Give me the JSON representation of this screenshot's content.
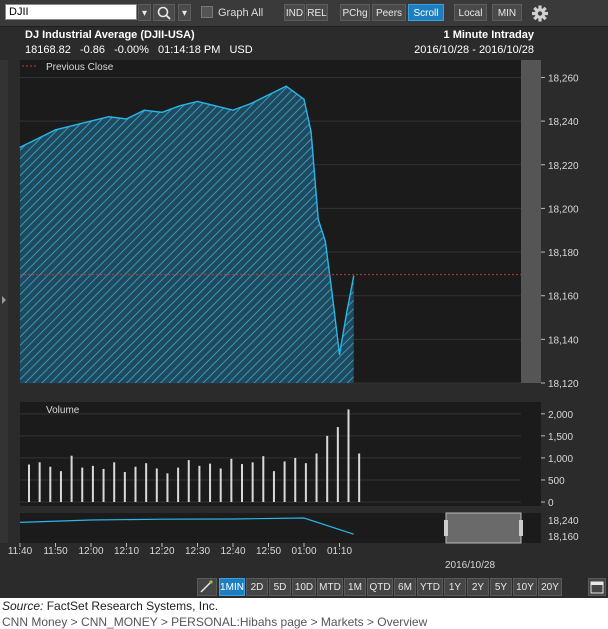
{
  "toolbar": {
    "symbol": "DJII",
    "graph_all": "Graph All",
    "ind": "IND",
    "rel": "REL",
    "pchg": "PChg",
    "peers": "Peers",
    "scroll": "Scroll",
    "local": "Local",
    "min": "MIN",
    "icons": [
      "dropdown-arrow-icon",
      "search-icon",
      "dropdown-arrow-icon",
      "gear-icon"
    ]
  },
  "header": {
    "title": "DJ Industrial Average (DJII-USA)",
    "interval": "1 Minute Intraday",
    "last": "18168.82",
    "change": "-0.86",
    "pct_change": "-0.00%",
    "time": "01:14:18 PM",
    "currency": "USD",
    "date_range": "2016/10/28 - 2016/10/28"
  },
  "legend": {
    "previous_close": "Previous Close"
  },
  "volume_label": "Volume",
  "colors": {
    "line": "#29b6e8",
    "prev_close": "#c0392b",
    "background": "#2b2b2b",
    "active": "#1e7fc0"
  },
  "chart_data": [
    {
      "type": "area",
      "title": "DJ Industrial Average (DJII-USA)",
      "x": [
        "11:40",
        "11:45",
        "11:50",
        "11:55",
        "12:00",
        "12:05",
        "12:10",
        "12:15",
        "12:20",
        "12:25",
        "12:30",
        "12:35",
        "12:40",
        "12:45",
        "12:50",
        "12:55",
        "13:00",
        "13:02",
        "13:04",
        "13:06",
        "13:08",
        "13:10",
        "13:12",
        "13:14"
      ],
      "series": [
        {
          "values": [
            18228,
            18232,
            18236,
            18238,
            18240,
            18242,
            18241,
            18245,
            18244,
            18247,
            18249,
            18247,
            18245,
            18248,
            18252,
            18256,
            18250,
            18235,
            18195,
            18185,
            18160,
            18133,
            18152,
            18169
          ]
        }
      ],
      "previous_close": 18169.68,
      "ylim": [
        18120,
        18268
      ],
      "yticks": [
        18120,
        18140,
        18160,
        18180,
        18200,
        18220,
        18240,
        18260
      ],
      "grid": true
    },
    {
      "type": "bar",
      "title": "Volume",
      "x": [
        "11:40",
        "11:43",
        "11:46",
        "11:49",
        "11:52",
        "11:55",
        "11:58",
        "12:01",
        "12:04",
        "12:07",
        "12:10",
        "12:13",
        "12:16",
        "12:19",
        "12:22",
        "12:25",
        "12:28",
        "12:31",
        "12:34",
        "12:37",
        "12:40",
        "12:43",
        "12:46",
        "12:49",
        "12:52",
        "12:55",
        "12:58",
        "13:01",
        "13:04",
        "13:07",
        "13:10",
        "13:13"
      ],
      "values": [
        850,
        900,
        800,
        700,
        1050,
        780,
        820,
        750,
        900,
        680,
        800,
        880,
        760,
        650,
        780,
        950,
        820,
        870,
        760,
        980,
        860,
        900,
        1040,
        700,
        920,
        1000,
        880,
        1100,
        1500,
        1700,
        2100,
        1100
      ],
      "ylim": [
        0,
        2200
      ],
      "yticks": [
        0,
        500,
        1000,
        1500,
        2000
      ]
    },
    {
      "type": "line",
      "title": "",
      "x": [
        "11:40",
        "12:00",
        "12:20",
        "12:40",
        "13:00",
        "13:14"
      ],
      "values": [
        18228,
        18240,
        18244,
        18245,
        18250,
        18169
      ],
      "yticks": [
        18160,
        18240
      ],
      "xticks": [
        "11:40",
        "11:50",
        "12:00",
        "12:10",
        "12:20",
        "12:30",
        "12:40",
        "12:50",
        "01:00",
        "01:10"
      ],
      "date": "2016/10/28"
    }
  ],
  "range_buttons": [
    "1MIN",
    "2D",
    "5D",
    "10D",
    "MTD",
    "1M",
    "QTD",
    "6M",
    "YTD",
    "1Y",
    "2Y",
    "5Y",
    "10Y",
    "20Y"
  ],
  "range_active": "1MIN",
  "footer": {
    "source_label": "Source:",
    "source_text": "FactSet Research Systems, Inc.",
    "breadcrumb": "CNN Money > CNN_MONEY > PERSONAL:Hibahs page > Markets > Overview"
  }
}
